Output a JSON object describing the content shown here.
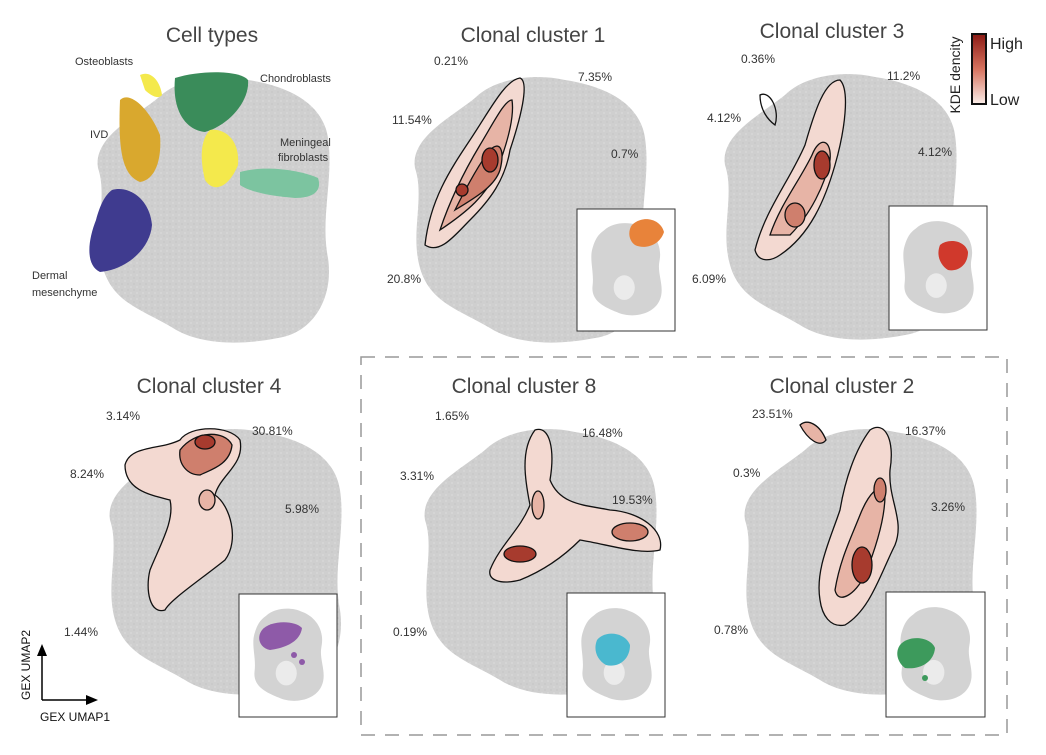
{
  "panels": [
    {
      "title": "Cell types",
      "labels": [
        "Osteoblasts",
        "Chondroblasts",
        "IVD",
        "Meningeal",
        "fibroblasts",
        "Dermal",
        "mesenchyme"
      ],
      "colors": {
        "osteoblasts": "#f4e94c",
        "chondroblasts": "#3a8c5a",
        "ivd": "#d9a82e",
        "meningeal": "#7cc4a0",
        "dermal": "#3f3b8f"
      }
    },
    {
      "title": "Clonal cluster 1",
      "percents": [
        "0.21%",
        "7.35%",
        "11.54%",
        "0.7%",
        "20.8%"
      ],
      "inset_color": "#e8833a"
    },
    {
      "title": "Clonal cluster 3",
      "percents": [
        "0.36%",
        "11.2%",
        "4.12%",
        "4.12%",
        "6.09%"
      ],
      "inset_color": "#d0392c"
    },
    {
      "title": "Clonal cluster 4",
      "percents": [
        "3.14%",
        "30.81%",
        "8.24%",
        "5.98%",
        "1.44%"
      ],
      "inset_color": "#8e5aa8"
    },
    {
      "title": "Clonal cluster 8",
      "percents": [
        "1.65%",
        "16.48%",
        "3.31%",
        "19.53%",
        "0.19%"
      ],
      "inset_color": "#4ab8cf"
    },
    {
      "title": "Clonal cluster 2",
      "percents": [
        "23.51%",
        "16.37%",
        "0.3%",
        "3.26%",
        "0.78%"
      ],
      "inset_color": "#3d9a5c"
    }
  ],
  "colorbar": {
    "label": "KDE dencity",
    "high": "High",
    "low": "Low"
  },
  "axes": {
    "x": "GEX UMAP1",
    "y": "GEX UMAP2"
  }
}
